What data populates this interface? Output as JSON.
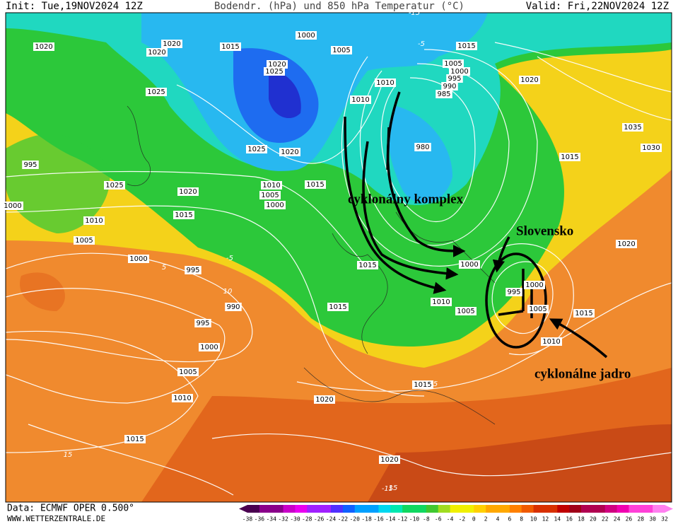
{
  "header": {
    "init": "Init: Tue,19NOV2024 12Z",
    "title": "Bodendr. (hPa) und 850 hPa Temperatur (°C)",
    "valid": "Valid: Fri,22NOV2024 12Z"
  },
  "isobar_labels": [
    "1020",
    "1020",
    "1020",
    "1015",
    "1000",
    "1005",
    "1020",
    "1025",
    "1010",
    "1010",
    "985",
    "990",
    "995",
    "1000",
    "1005",
    "1015",
    "1020",
    "1025",
    "1035",
    "1030",
    "995",
    "1025",
    "980",
    "1025",
    "1020",
    "1015",
    "1015",
    "1010",
    "1005",
    "1000",
    "1020",
    "1015",
    "1010",
    "1005",
    "1000",
    "995",
    "990",
    "995",
    "1000",
    "1005",
    "1010",
    "1015",
    "1015",
    "1000",
    "1010",
    "1005",
    "1015",
    "995",
    "1000",
    "1005",
    "1015",
    "1020",
    "1010",
    "1015",
    "1020",
    "1020",
    "1000"
  ],
  "temperature_labels": [
    "-5",
    "-5",
    "10",
    "5",
    "-15",
    "15",
    "-15",
    "15",
    "5"
  ],
  "annotations": {
    "complex": "cyklonálny komplex",
    "slovakia": "Slovensko",
    "core": "cyklonálne jadro"
  },
  "footer": {
    "source": "Data: ECMWF OPER 0.500°",
    "website": "WWW.WETTERZENTRALE.DE"
  },
  "colorbar": {
    "ticks": [
      -38,
      -36,
      -34,
      -32,
      -30,
      -28,
      -26,
      -24,
      -22,
      -20,
      -18,
      -16,
      -14,
      -12,
      -10,
      -8,
      -6,
      -4,
      -2,
      0,
      2,
      4,
      6,
      8,
      10,
      12,
      14,
      16,
      18,
      20,
      22,
      24,
      26,
      28,
      30,
      32
    ]
  }
}
